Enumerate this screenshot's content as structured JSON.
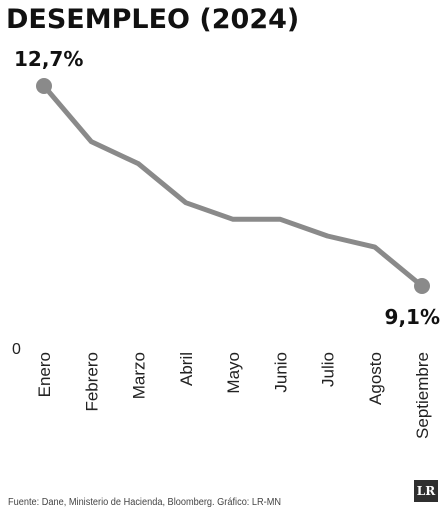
{
  "chart_data": {
    "type": "line",
    "title": "DESEMPLEO (2024)",
    "categories": [
      "Enero",
      "Febrero",
      "Marzo",
      "Abril",
      "Mayo",
      "Junio",
      "Julio",
      "Agosto",
      "Septiembre"
    ],
    "series": [
      {
        "values": [
          12.7,
          11.7,
          11.3,
          10.6,
          10.3,
          10.3,
          10.0,
          9.8,
          9.1
        ]
      }
    ],
    "data_labels": {
      "first": "12,7%",
      "last": "9,1%"
    },
    "y_zero_label": "0",
    "ylim": [
      0,
      12.7
    ],
    "grid": false,
    "colors": {
      "line": "#8a8a8a",
      "marker": "#8a8a8a"
    }
  },
  "source_text": "Fuente: Dane, Ministerio de Hacienda, Bloomberg. Gráfico: LR-MN",
  "logo_text": "LR"
}
